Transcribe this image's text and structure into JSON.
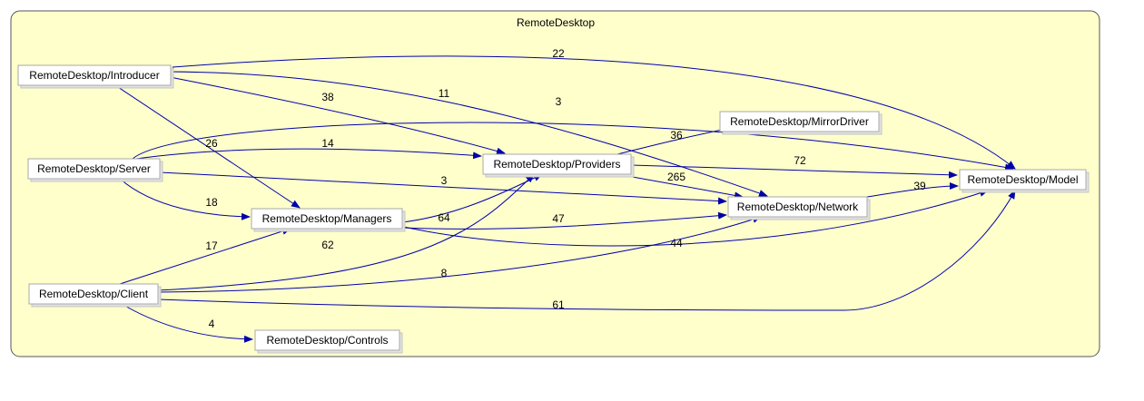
{
  "diagram": {
    "title": "RemoteDesktop",
    "colors": {
      "background": "#ffffcc",
      "frame_border": "#555555",
      "edge": "#0000aa",
      "node_fill": "#ffffff",
      "node_border": "#a9a9a9"
    },
    "nodes": {
      "introducer": "RemoteDesktop/Introducer",
      "server": "RemoteDesktop/Server",
      "client": "RemoteDesktop/Client",
      "managers": "RemoteDesktop/Managers",
      "controls": "RemoteDesktop/Controls",
      "providers": "RemoteDesktop/Providers",
      "mirrordriver": "RemoteDesktop/MirrorDriver",
      "network": "RemoteDesktop/Network",
      "model": "RemoteDesktop/Model"
    },
    "edges": [
      {
        "from": "introducer",
        "to": "model",
        "label": "22"
      },
      {
        "from": "introducer",
        "to": "network",
        "label": "11"
      },
      {
        "from": "introducer",
        "to": "providers",
        "label": "38"
      },
      {
        "from": "introducer",
        "to": "managers",
        "label": "26"
      },
      {
        "from": "server",
        "to": "model",
        "label": "3"
      },
      {
        "from": "server",
        "to": "providers",
        "label": "14"
      },
      {
        "from": "server",
        "to": "network",
        "label": "3"
      },
      {
        "from": "server",
        "to": "managers",
        "label": "18"
      },
      {
        "from": "providers",
        "to": "mirrordriver",
        "label": "36"
      },
      {
        "from": "providers",
        "to": "model",
        "label": "72"
      },
      {
        "from": "providers",
        "to": "network",
        "label": "265"
      },
      {
        "from": "network",
        "to": "model",
        "label": "39"
      },
      {
        "from": "managers",
        "to": "providers",
        "label": "64"
      },
      {
        "from": "managers",
        "to": "network",
        "label": "47"
      },
      {
        "from": "managers",
        "to": "model",
        "label": "44"
      },
      {
        "from": "client",
        "to": "managers",
        "label": "17"
      },
      {
        "from": "client",
        "to": "providers",
        "label": "62"
      },
      {
        "from": "client",
        "to": "network",
        "label": "8"
      },
      {
        "from": "client",
        "to": "model",
        "label": "61"
      },
      {
        "from": "client",
        "to": "controls",
        "label": "4"
      }
    ]
  }
}
